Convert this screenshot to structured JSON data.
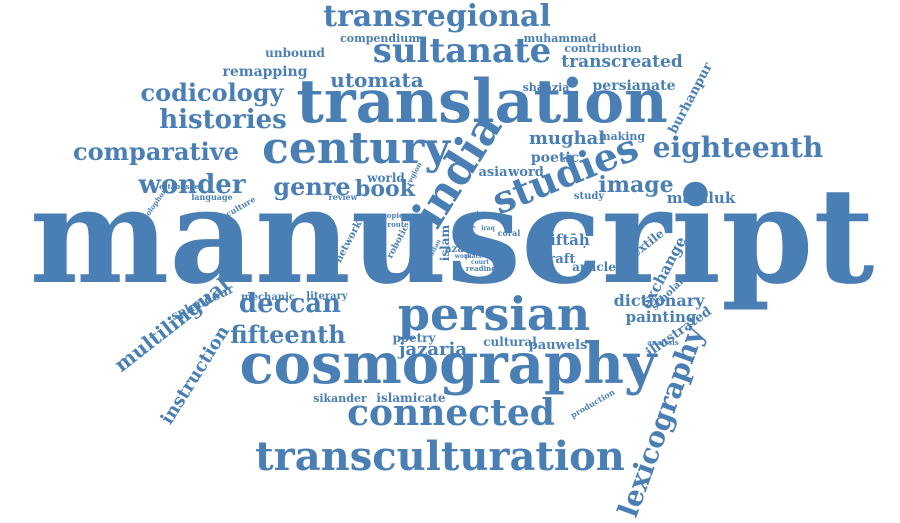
{
  "color": "#4a7fb5",
  "words": [
    "manuscript",
    "translation",
    "cosmography",
    "sultanate",
    "century",
    "persian",
    "india",
    "studies",
    "transculturation",
    "connected",
    "transregional",
    "lexicography",
    "histories",
    "codicology",
    "comparative",
    "eighteenth",
    "wonder",
    "genre",
    "book",
    "image",
    "deccan",
    "fifteenth",
    "multilingual",
    "instruction",
    "utomata",
    "remapping",
    "transcreated",
    "persianate",
    "unbound",
    "compendium",
    "muhammad",
    "contribution",
    "shahzia",
    "burhanpur",
    "mughal",
    "making",
    "poetic",
    "word",
    "asia",
    "study",
    "mamluk",
    "dictionary",
    "painting",
    "exchange",
    "scholar",
    "textile",
    "illustrated",
    "miftāḥ",
    "craft",
    "article",
    "jazaria",
    "cultural",
    "pauwels",
    "poetry",
    "islamicate",
    "sikander",
    "splendour",
    "mechanic",
    "literary",
    "network",
    "robotic",
    "islam",
    "azad",
    "copies",
    "route",
    "central",
    "coral",
    "iran",
    "iraq",
    "reading",
    "review",
    "world",
    "region",
    "language",
    "culture",
    "establishes",
    "colophon",
    "production",
    "analysis",
    "court",
    "place",
    "work",
    "sultan",
    "early"
  ]
}
